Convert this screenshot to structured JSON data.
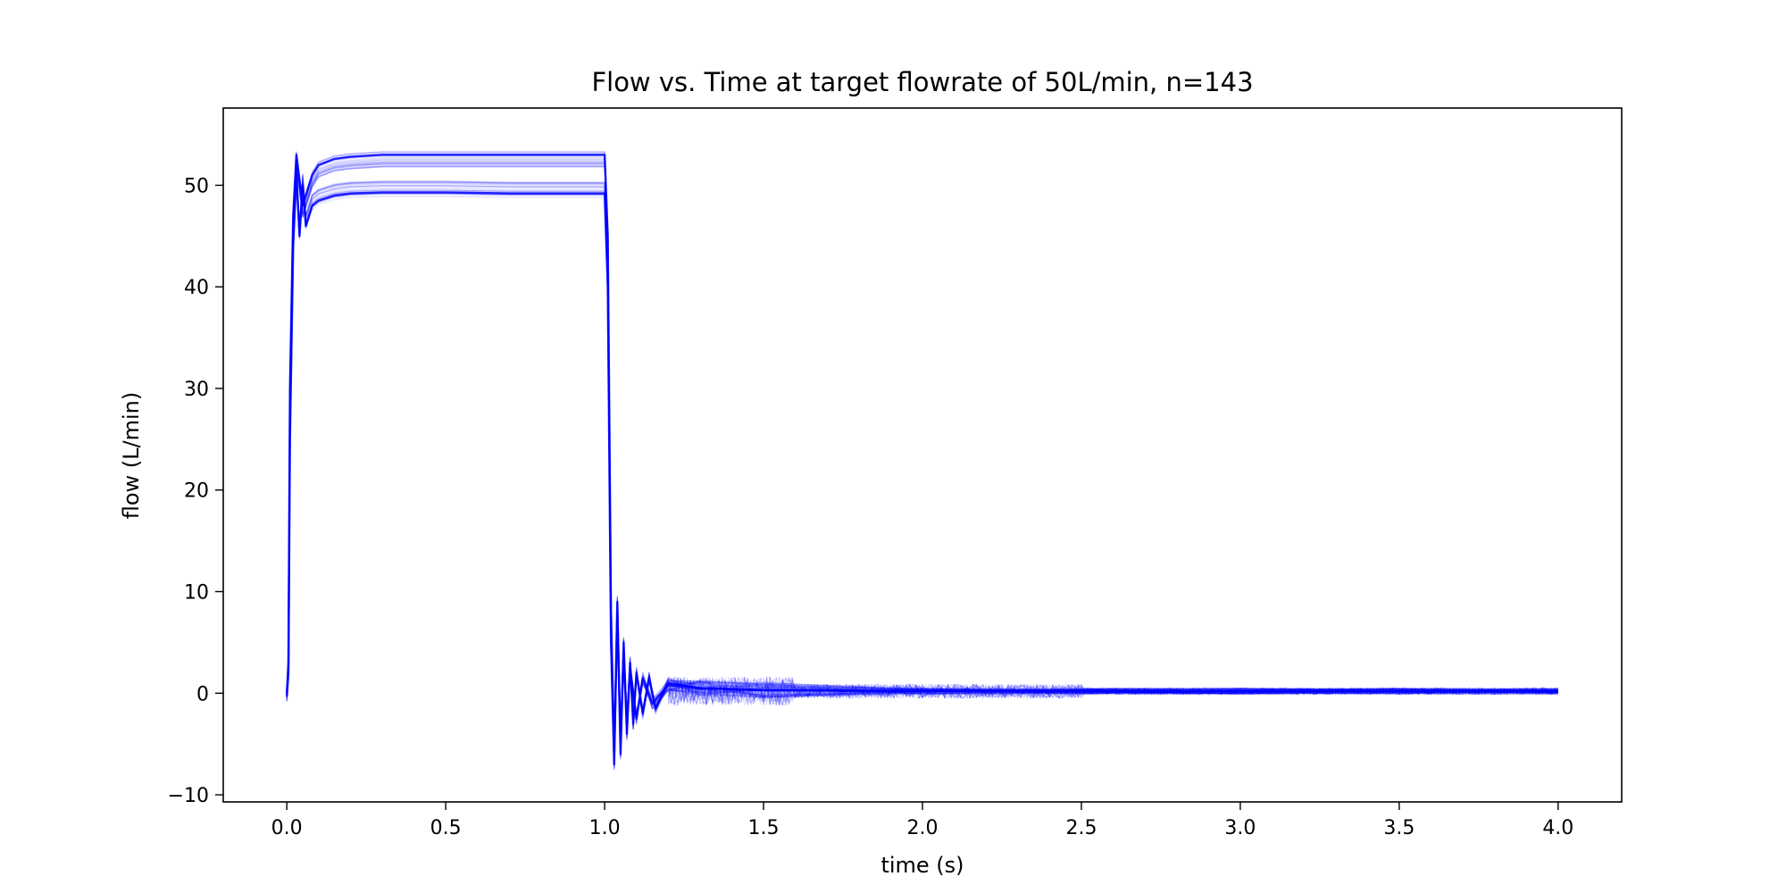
{
  "chart_data": {
    "type": "line",
    "title": "Flow vs. Time at target flowrate of 50L/min, n=143",
    "xlabel": "time (s)",
    "ylabel": "flow (L/min)",
    "xlim": [
      -0.2,
      4.2
    ],
    "ylim": [
      -10.7,
      57.6
    ],
    "xticks": [
      0.0,
      0.5,
      1.0,
      1.5,
      2.0,
      2.5,
      3.0,
      3.5,
      4.0
    ],
    "xtick_labels": [
      "0.0",
      "0.5",
      "1.0",
      "1.5",
      "2.0",
      "2.5",
      "3.0",
      "3.5",
      "4.0"
    ],
    "yticks": [
      -10,
      0,
      10,
      20,
      30,
      40,
      50
    ],
    "ytick_labels": [
      "−10",
      "0",
      "10",
      "20",
      "30",
      "40",
      "50"
    ],
    "grid": false,
    "legend": "none",
    "line_color": "#0000ff",
    "series_count": 143,
    "series_description": "overlaid flow traces",
    "representative_series": [
      {
        "x": [
          0.0,
          0.005,
          0.01,
          0.02,
          0.03,
          0.04,
          0.05,
          0.06,
          0.08,
          0.1,
          0.15,
          0.2,
          0.3,
          0.5,
          0.7,
          0.9,
          1.0,
          1.01,
          1.02,
          1.03,
          1.04,
          1.05,
          1.06,
          1.07,
          1.08,
          1.09,
          1.1,
          1.12,
          1.14,
          1.16,
          1.2,
          1.3,
          1.5,
          2.0,
          2.5,
          3.0,
          3.5,
          4.0
        ],
        "y": [
          -0.3,
          2,
          25,
          44,
          51,
          45,
          50,
          46,
          48,
          48.5,
          49,
          49.2,
          49.3,
          49.3,
          49.2,
          49.2,
          49.2,
          40,
          5,
          -7,
          9,
          -6,
          5,
          -4,
          3,
          -3,
          2,
          -2,
          1.5,
          -1.5,
          1,
          0.5,
          0.3,
          0.2,
          0.2,
          0.2,
          0.2,
          0.2
        ]
      },
      {
        "x": [
          0.0,
          0.005,
          0.01,
          0.02,
          0.03,
          0.05,
          0.08,
          0.1,
          0.15,
          0.2,
          0.3,
          0.5,
          0.7,
          0.9,
          1.0,
          1.01,
          1.02,
          1.03,
          1.04,
          1.05,
          1.06,
          1.07,
          1.08,
          1.1,
          1.12,
          1.15,
          1.2,
          1.3,
          1.5,
          2.0,
          3.0,
          4.0
        ],
        "y": [
          0,
          3,
          30,
          47,
          53,
          48,
          51,
          52,
          52.6,
          52.8,
          53,
          53,
          53,
          53,
          53,
          45,
          8,
          -6,
          8,
          -5,
          4,
          -3,
          2.5,
          -2.5,
          1.5,
          -1,
          0.8,
          0.5,
          0.3,
          0.2,
          0.2,
          0.2
        ]
      }
    ]
  }
}
